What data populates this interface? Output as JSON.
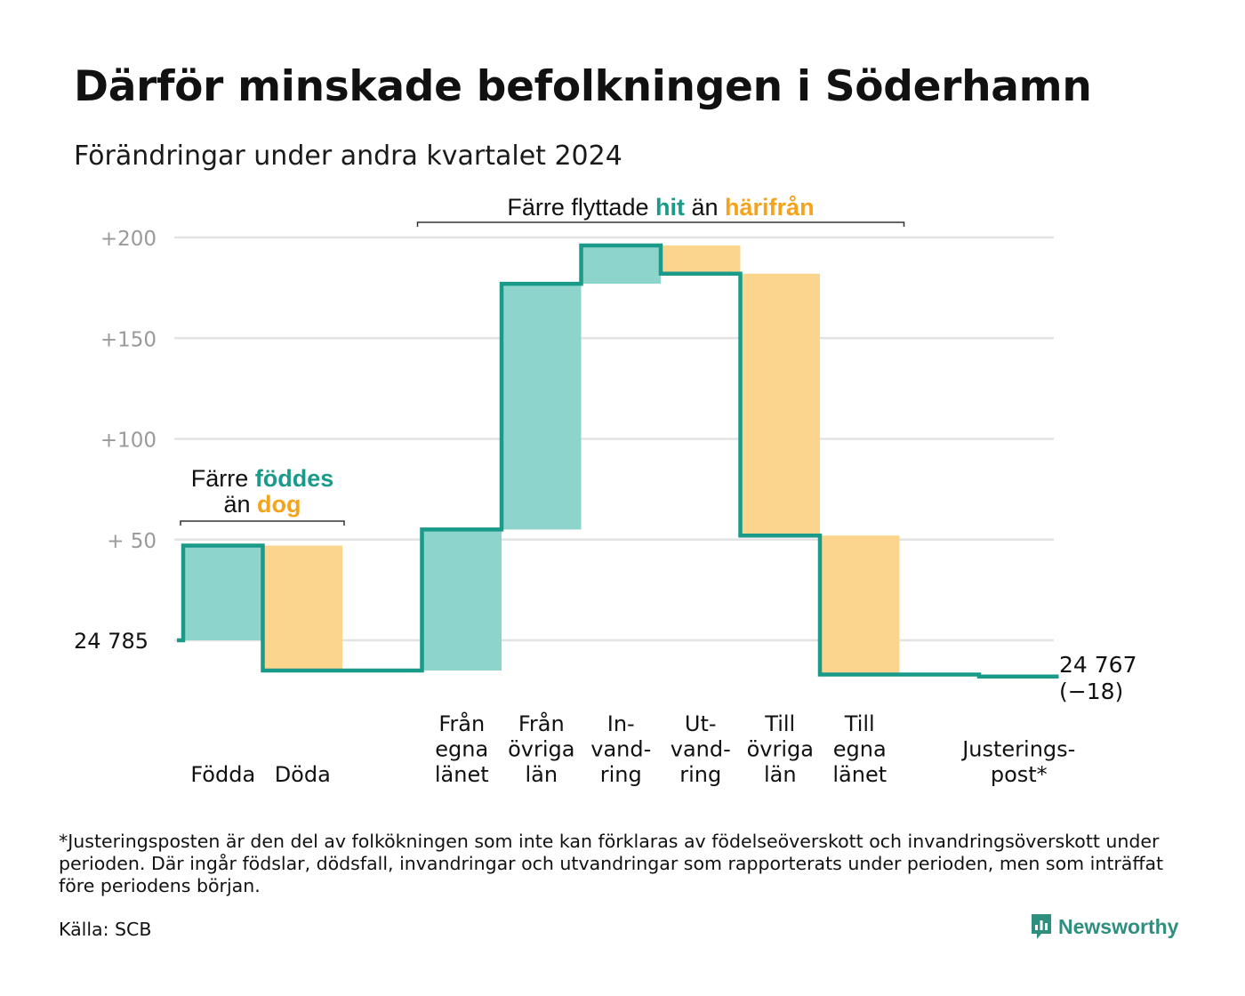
{
  "title": "Därför minskade befolkningen i Söderhamn",
  "subtitle": "Förändringar under andra kvartalet 2024",
  "colors": {
    "increase": "#8dd5cc",
    "decrease": "#fbd58e",
    "line": "#1a9a89",
    "grid": "#e3e3e3",
    "axis_text": "#9a9a9a",
    "teal_text": "#1a9a89",
    "orange_text": "#f5a31a"
  },
  "chart_data": {
    "type": "waterfall",
    "y_tick_labels": [
      "+  50",
      "+100",
      "+150",
      "+200"
    ],
    "y_tick_values": [
      50,
      100,
      150,
      200
    ],
    "ylim": [
      -70,
      208
    ],
    "start": {
      "label": "24  785",
      "value": 0
    },
    "end": {
      "label": "24 767",
      "change_label": "(−18)",
      "value": -18
    },
    "steps": [
      {
        "label": "Födda",
        "lines": [
          "Födda"
        ],
        "delta": 47,
        "kind": "increase"
      },
      {
        "label": "Döda",
        "lines": [
          "Döda"
        ],
        "delta": -62,
        "kind": "decrease"
      },
      {
        "label": "",
        "lines": [],
        "delta": 0,
        "kind": "none"
      },
      {
        "label": "Från egna länet",
        "lines": [
          "Från",
          "egna",
          "länet"
        ],
        "delta": 70,
        "kind": "increase"
      },
      {
        "label": "Från övriga län",
        "lines": [
          "Från",
          "övriga",
          "län"
        ],
        "delta": 122,
        "kind": "increase"
      },
      {
        "label": "In-vandring",
        "lines": [
          "In-",
          "vand-",
          "ring"
        ],
        "delta": 19,
        "kind": "increase"
      },
      {
        "label": "Ut-vandring",
        "lines": [
          "Ut-",
          "vand-",
          "ring"
        ],
        "delta": -14,
        "kind": "decrease"
      },
      {
        "label": "Till övriga län",
        "lines": [
          "Till",
          "övriga",
          "län"
        ],
        "delta": -130,
        "kind": "decrease"
      },
      {
        "label": "Till egna länet",
        "lines": [
          "Till",
          "egna",
          "länet"
        ],
        "delta": -69,
        "kind": "decrease"
      },
      {
        "label": "",
        "lines": [],
        "delta": 0,
        "kind": "none"
      },
      {
        "label": "Justerings-post*",
        "lines": [
          "Justerings-",
          "post*"
        ],
        "delta": -1,
        "kind": "none"
      }
    ],
    "annotations": [
      {
        "id": "births",
        "line1_pre": "Färre ",
        "line1_hl": "föddes",
        "line2_pre": "än ",
        "line2_hl": "dog",
        "span": [
          0,
          1
        ]
      },
      {
        "id": "migration",
        "pre": "Färre flyttade ",
        "hl1": "hit",
        "mid": " än ",
        "hl2": "härifrån",
        "span": [
          3,
          8
        ]
      }
    ]
  },
  "footnote": "*Justeringsposten är den del av folkökningen som inte kan förklaras av födelseöverskott och invandringsöverskott under perioden. Där ingår födslar, dödsfall, invandringar och utvandringar som rapporterats under perioden, men som inträffat före periodens början.",
  "source": "Källa: SCB",
  "brand": {
    "name": "Newsworthy",
    "icon": "newsworthy-logo-icon"
  }
}
